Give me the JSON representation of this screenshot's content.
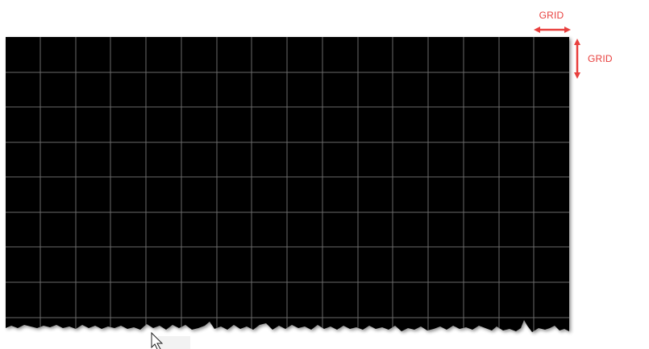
{
  "viewport": {
    "background_color": "#000000",
    "grid_line_color": "#6b6b6b",
    "page_background": "#ffffff"
  },
  "annotations": {
    "horizontal_label": "GRID",
    "vertical_label": "GRID",
    "color": "#e8403e"
  },
  "cursor": {
    "icon": "arrow-cursor-icon"
  }
}
